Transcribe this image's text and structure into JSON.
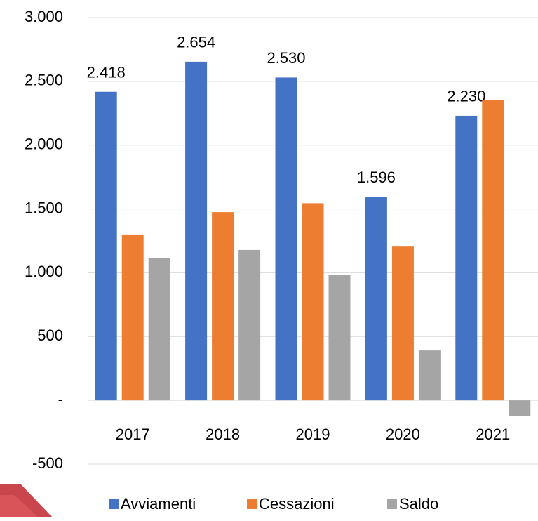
{
  "chart_data": {
    "type": "bar",
    "categories": [
      "2017",
      "2018",
      "2019",
      "2020",
      "2021"
    ],
    "series": [
      {
        "name": "Avviamenti",
        "color": "#4472c4",
        "values": [
          2418,
          2654,
          2530,
          1596,
          2230
        ],
        "value_labels": [
          "2.418",
          "2.654",
          "2.530",
          "1.596",
          "2.230"
        ]
      },
      {
        "name": "Cessazioni",
        "color": "#ed7d31",
        "values": [
          1300,
          1475,
          1545,
          1205,
          2355
        ]
      },
      {
        "name": "Saldo",
        "color": "#a5a5a5",
        "values": [
          1118,
          1179,
          985,
          391,
          -125
        ]
      }
    ],
    "ylim": [
      -500,
      3000
    ],
    "yticks": [
      {
        "value": -500,
        "label": "-500"
      },
      {
        "value": 0,
        "label": "-"
      },
      500,
      {
        "value": 1000,
        "label": "1.000"
      },
      {
        "value": 1500,
        "label": "1.500"
      },
      {
        "value": 2000,
        "label": "2.000"
      },
      {
        "value": 2500,
        "label": "2.500"
      },
      {
        "value": 3000,
        "label": "3.000"
      }
    ],
    "grid": true,
    "legend": "bottom"
  }
}
